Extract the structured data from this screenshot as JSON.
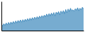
{
  "chart_data": {
    "type": "area",
    "values": [
      55,
      48,
      57,
      50,
      60,
      52,
      62,
      54,
      64,
      56,
      66,
      58,
      68,
      60,
      70,
      62,
      72,
      63,
      73,
      65,
      75,
      67,
      77,
      69,
      79,
      71,
      81,
      73,
      83,
      75,
      85,
      77,
      87,
      80,
      89,
      82,
      91,
      84,
      95,
      86,
      97,
      88,
      99,
      90,
      101,
      88,
      103,
      95,
      105,
      92,
      107,
      98,
      109,
      96,
      113,
      100,
      115,
      105,
      118,
      108,
      112,
      106,
      116,
      110,
      120,
      108,
      118,
      112,
      122,
      115
    ],
    "baseline": 30,
    "color": "#4a90c0",
    "xlim": [
      0,
      69
    ],
    "ylim": [
      30,
      145
    ],
    "grid": false,
    "tick_labels": false
  }
}
